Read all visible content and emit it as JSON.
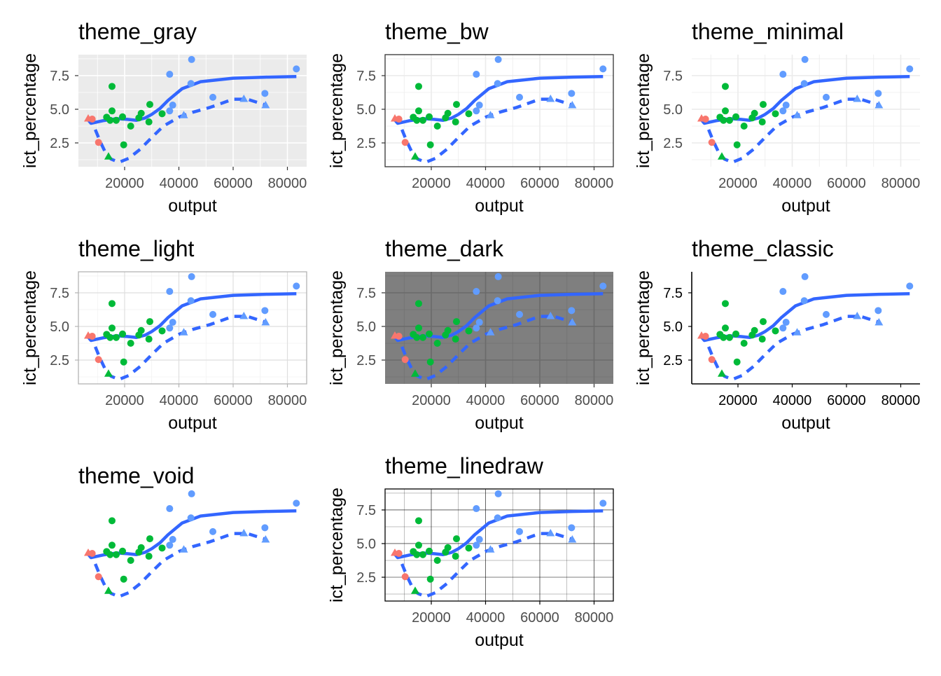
{
  "chart_data": {
    "type": "scatter",
    "xlabel": "output",
    "ylabel": "ict_percentage",
    "xlim": [
      2968,
      87097
    ],
    "ylim": [
      0.73,
      9.06
    ],
    "x_ticks": [
      20000,
      40000,
      60000,
      80000
    ],
    "x_tick_labels": [
      "20000",
      "40000",
      "60000",
      "80000"
    ],
    "y_ticks": [
      2.5,
      5.0,
      7.5
    ],
    "y_tick_labels": [
      "2.5",
      "5.0",
      "7.5"
    ],
    "colors": {
      "red": "#F8766D",
      "green": "#00BA38",
      "blue": "#619CFF",
      "line": "#3366FF"
    },
    "points": [
      {
        "x": 6580,
        "y": 4.32,
        "color": "red",
        "shape": "triangle"
      },
      {
        "x": 8050,
        "y": 4.27,
        "color": "red",
        "shape": "circle"
      },
      {
        "x": 10370,
        "y": 2.54,
        "color": "red",
        "shape": "circle"
      },
      {
        "x": 14060,
        "y": 1.5,
        "color": "green",
        "shape": "triangle"
      },
      {
        "x": 15350,
        "y": 6.7,
        "color": "green",
        "shape": "circle"
      },
      {
        "x": 15350,
        "y": 4.88,
        "color": "green",
        "shape": "circle"
      },
      {
        "x": 13370,
        "y": 4.41,
        "color": "green",
        "shape": "circle"
      },
      {
        "x": 14660,
        "y": 4.18,
        "color": "green",
        "shape": "circle"
      },
      {
        "x": 16900,
        "y": 4.18,
        "color": "green",
        "shape": "circle"
      },
      {
        "x": 19230,
        "y": 4.44,
        "color": "green",
        "shape": "circle"
      },
      {
        "x": 19660,
        "y": 2.36,
        "color": "green",
        "shape": "circle"
      },
      {
        "x": 22240,
        "y": 3.75,
        "color": "green",
        "shape": "circle"
      },
      {
        "x": 26110,
        "y": 4.7,
        "color": "green",
        "shape": "circle"
      },
      {
        "x": 25240,
        "y": 4.36,
        "color": "green",
        "shape": "circle"
      },
      {
        "x": 29290,
        "y": 5.36,
        "color": "green",
        "shape": "circle"
      },
      {
        "x": 28950,
        "y": 4.06,
        "color": "green",
        "shape": "circle"
      },
      {
        "x": 33810,
        "y": 4.67,
        "color": "green",
        "shape": "circle"
      },
      {
        "x": 36600,
        "y": 7.6,
        "color": "blue",
        "shape": "circle"
      },
      {
        "x": 44680,
        "y": 8.7,
        "color": "blue",
        "shape": "circle"
      },
      {
        "x": 44430,
        "y": 6.91,
        "color": "blue",
        "shape": "circle"
      },
      {
        "x": 37730,
        "y": 5.31,
        "color": "blue",
        "shape": "circle"
      },
      {
        "x": 36600,
        "y": 4.88,
        "color": "blue",
        "shape": "circle"
      },
      {
        "x": 52520,
        "y": 5.89,
        "color": "blue",
        "shape": "circle"
      },
      {
        "x": 71700,
        "y": 6.18,
        "color": "blue",
        "shape": "circle"
      },
      {
        "x": 83300,
        "y": 8.0,
        "color": "blue",
        "shape": "circle"
      },
      {
        "x": 41810,
        "y": 4.57,
        "color": "blue",
        "shape": "triangle"
      },
      {
        "x": 63950,
        "y": 5.78,
        "color": "blue",
        "shape": "triangle"
      },
      {
        "x": 71960,
        "y": 5.31,
        "color": "blue",
        "shape": "triangle"
      }
    ],
    "series": [
      {
        "name": "solid smooth",
        "linetype": "solid",
        "x": [
          6580,
          7600,
          12000,
          17100,
          21000,
          24400,
          27500,
          30000,
          33000,
          36000,
          41200,
          48000,
          60000,
          72000,
          83300
        ],
        "y": [
          4.2,
          3.96,
          4.15,
          4.3,
          4.25,
          4.18,
          4.35,
          4.62,
          5.05,
          5.66,
          6.53,
          7.05,
          7.31,
          7.39,
          7.43
        ]
      },
      {
        "name": "dashed smooth",
        "linetype": "dashed",
        "x": [
          9200,
          11000,
          12800,
          15000,
          17900,
          21500,
          25700,
          30000,
          34300,
          40300,
          45500,
          51500,
          60000,
          65200,
          72100
        ],
        "y": [
          3.49,
          2.6,
          1.84,
          1.3,
          1.06,
          1.35,
          2.02,
          2.9,
          3.75,
          4.44,
          4.8,
          5.14,
          5.75,
          5.75,
          5.31
        ]
      }
    ],
    "panels": [
      {
        "title": "theme_gray",
        "theme": "gray"
      },
      {
        "title": "theme_bw",
        "theme": "bw"
      },
      {
        "title": "theme_minimal",
        "theme": "minimal"
      },
      {
        "title": "theme_light",
        "theme": "light"
      },
      {
        "title": "theme_dark",
        "theme": "dark"
      },
      {
        "title": "theme_classic",
        "theme": "classic"
      },
      {
        "title": "theme_void",
        "theme": "void"
      },
      {
        "title": "theme_linedraw",
        "theme": "linedraw"
      }
    ]
  }
}
